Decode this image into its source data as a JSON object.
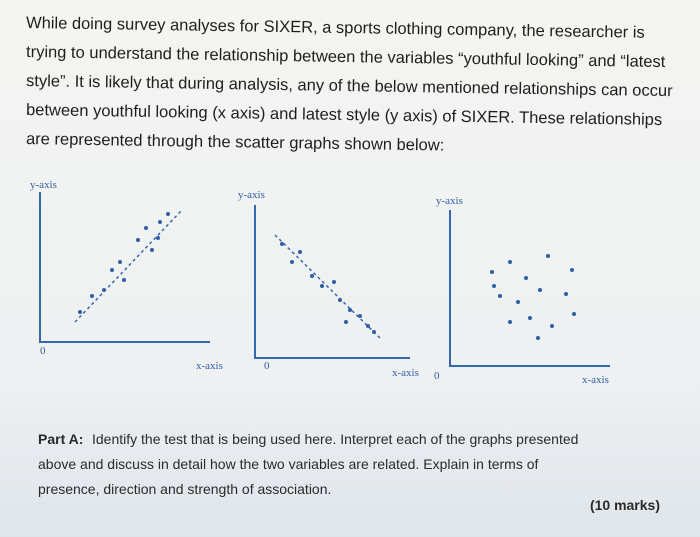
{
  "question": {
    "lines": [
      "While doing survey analyses for SIXER, a sports clothing company, the researcher is",
      "trying to understand the relationship between the variables “youthful looking” and “latest",
      "style”. It is likely that during analysis, any of the below mentioned relationships can occur",
      "between youthful looking (x axis) and latest style (y axis) of SIXER. These relationships",
      "are represented through the scatter graphs shown below:"
    ]
  },
  "graphs": [
    {
      "y_label": "y-axis",
      "x_label": "x-axis",
      "origin": "0"
    },
    {
      "y_label": "y-axis",
      "x_label": "x-axis",
      "origin": "0"
    },
    {
      "y_label": "y-axis",
      "x_label": "x-axis",
      "origin": "0"
    }
  ],
  "part_a": {
    "label": "Part A:",
    "lines": [
      "Identify the test that is being used here. Interpret each of the graphs presented",
      "above and discuss in detail how the two variables are related. Explain in terms of",
      "presence, direction and strength of association."
    ],
    "marks": "(10 marks)"
  }
}
